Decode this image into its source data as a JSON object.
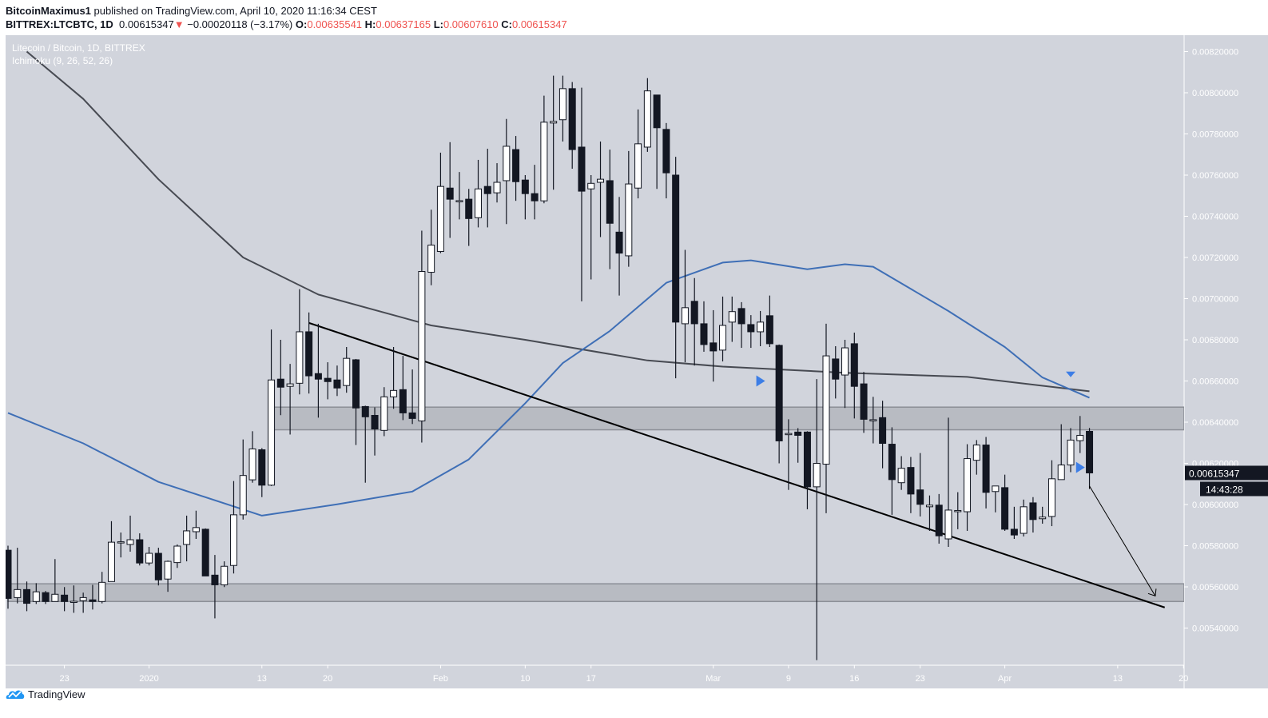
{
  "header": {
    "author": "BitcoinMaximus1",
    "published": "published on TradingView.com, April 10, 2020 11:16:34 CEST",
    "symbol": "BITTREX:LTCBTC, 1D",
    "last": "0.00615347",
    "change": "−0.00020118 (−3.17%)",
    "o_label": "O:",
    "o": "0.00635541",
    "h_label": "H:",
    "h": "0.00637165",
    "l_label": "L:",
    "l": "0.00607610",
    "c_label": "C:",
    "c": "0.00615347"
  },
  "legend": {
    "title": "Litecoin / Bitcoin, 1D, BITTREX",
    "indicator": "Ichimoku (9, 26, 52, 26)"
  },
  "footer": {
    "brand": "TradingView"
  },
  "colors": {
    "background": "#d1d4dc",
    "up": "#ffffff",
    "down": "#131722",
    "blue_line": "#3f6fb6",
    "gray_line": "#474a52",
    "marker": "#3d7ee6",
    "zone": "#b4b6bd",
    "down_arrow": "#ef5350"
  },
  "chart_data": {
    "type": "candlestick",
    "timeframe": "1D",
    "ylim": [
      0.0052,
      0.0083
    ],
    "y_ticks": [
      "0.00540000",
      "0.00560000",
      "0.00580000",
      "0.00600000",
      "0.00620000",
      "0.00640000",
      "0.00660000",
      "0.00680000",
      "0.00700000",
      "0.00720000",
      "0.00740000",
      "0.00760000",
      "0.00780000",
      "0.00800000",
      "0.00820000"
    ],
    "x_ticks": [
      {
        "date": "2019-12-23",
        "label": "23"
      },
      {
        "date": "2020-01-01",
        "label": "2020"
      },
      {
        "date": "2020-01-13",
        "label": "13"
      },
      {
        "date": "2020-01-20",
        "label": "20"
      },
      {
        "date": "2020-02-01",
        "label": "Feb"
      },
      {
        "date": "2020-02-10",
        "label": "10"
      },
      {
        "date": "2020-02-17",
        "label": "17"
      },
      {
        "date": "2020-03-01",
        "label": "Mar"
      },
      {
        "date": "2020-03-09",
        "label": "9"
      },
      {
        "date": "2020-03-16",
        "label": "16"
      },
      {
        "date": "2020-03-23",
        "label": "23"
      },
      {
        "date": "2020-04-01",
        "label": "Apr"
      },
      {
        "date": "2020-04-13",
        "label": "13"
      },
      {
        "date": "2020-04-20",
        "label": "20"
      }
    ],
    "last_price_label": "0.00615347",
    "countdown": "14:43:28",
    "candles_columns": [
      "date",
      "open",
      "high",
      "low",
      "close"
    ],
    "candles": [
      [
        "2019-12-17",
        0.005778,
        0.0058,
        0.005494,
        0.005544
      ],
      [
        "2019-12-18",
        0.005548,
        0.00579,
        0.00552,
        0.005587
      ],
      [
        "2019-12-19",
        0.005587,
        0.005626,
        0.005482,
        0.00552
      ],
      [
        "2019-12-20",
        0.005529,
        0.005618,
        0.005517,
        0.005576
      ],
      [
        "2019-12-21",
        0.005572,
        0.00558,
        0.005517,
        0.005529
      ],
      [
        "2019-12-22",
        0.005529,
        0.005735,
        0.005529,
        0.005564
      ],
      [
        "2019-12-23",
        0.00556,
        0.005599,
        0.005482,
        0.005529
      ],
      [
        "2019-12-24",
        0.005529,
        0.005607,
        0.005474,
        0.00553
      ],
      [
        "2019-12-25",
        0.005533,
        0.005572,
        0.005474,
        0.005548
      ],
      [
        "2019-12-26",
        0.005537,
        0.00561,
        0.00549,
        0.005529
      ],
      [
        "2019-12-27",
        0.005529,
        0.005673,
        0.00552,
        0.005622
      ],
      [
        "2019-12-28",
        0.005626,
        0.005919,
        0.005626,
        0.005817
      ],
      [
        "2019-12-29",
        0.005817,
        0.005864,
        0.005743,
        0.005819
      ],
      [
        "2019-12-30",
        0.005806,
        0.005946,
        0.005771,
        0.005829
      ],
      [
        "2019-12-31",
        0.005829,
        0.00586,
        0.005704,
        0.005716
      ],
      [
        "2020-01-01",
        0.005716,
        0.005794,
        0.005704,
        0.005763
      ],
      [
        "2020-01-02",
        0.005763,
        0.00579,
        0.005607,
        0.005634
      ],
      [
        "2020-01-03",
        0.005638,
        0.005728,
        0.005576,
        0.005724
      ],
      [
        "2020-01-04",
        0.005718,
        0.005806,
        0.005692,
        0.005798
      ],
      [
        "2020-01-05",
        0.005806,
        0.005946,
        0.005724,
        0.005872
      ],
      [
        "2020-01-06",
        0.005868,
        0.00597,
        0.005833,
        0.005888
      ],
      [
        "2020-01-07",
        0.00588,
        0.005884,
        0.005653,
        0.005653
      ],
      [
        "2020-01-08",
        0.005657,
        0.005755,
        0.005447,
        0.00561
      ],
      [
        "2020-01-09",
        0.00561,
        0.005724,
        0.005599,
        0.0057
      ],
      [
        "2020-01-10",
        0.005704,
        0.006114,
        0.005665,
        0.00595
      ],
      [
        "2020-01-11",
        0.00595,
        0.006316,
        0.005927,
        0.006141
      ],
      [
        "2020-01-12",
        0.00612,
        0.006356,
        0.006106,
        0.00627
      ],
      [
        "2020-01-13",
        0.006266,
        0.006274,
        0.006036,
        0.006094
      ],
      [
        "2020-01-14",
        0.006094,
        0.00685,
        0.00609,
        0.006605
      ],
      [
        "2020-01-15",
        0.006609,
        0.0068,
        0.006434,
        0.00657
      ],
      [
        "2020-01-16",
        0.006574,
        0.006683,
        0.00634,
        0.006586
      ],
      [
        "2020-01-17",
        0.006589,
        0.007046,
        0.006535,
        0.006839
      ],
      [
        "2020-01-18",
        0.006839,
        0.006933,
        0.006539,
        0.006625
      ],
      [
        "2020-01-19",
        0.006636,
        0.006878,
        0.006422,
        0.006609
      ],
      [
        "2020-01-20",
        0.006613,
        0.006691,
        0.006511,
        0.006597
      ],
      [
        "2020-01-21",
        0.006605,
        0.006675,
        0.006527,
        0.006566
      ],
      [
        "2020-01-22",
        0.006578,
        0.006765,
        0.006543,
        0.00671
      ],
      [
        "2020-01-23",
        0.006703,
        0.006707,
        0.006289,
        0.006469
      ],
      [
        "2020-01-24",
        0.006476,
        0.00648,
        0.006106,
        0.006426
      ],
      [
        "2020-01-25",
        0.006433,
        0.006472,
        0.006238,
        0.006367
      ],
      [
        "2020-01-26",
        0.00636,
        0.00657,
        0.006332,
        0.006523
      ],
      [
        "2020-01-27",
        0.006523,
        0.006765,
        0.006465,
        0.006554
      ],
      [
        "2020-01-28",
        0.006558,
        0.006722,
        0.00641,
        0.006445
      ],
      [
        "2020-01-29",
        0.006445,
        0.006656,
        0.006391,
        0.006418
      ],
      [
        "2020-01-30",
        0.006406,
        0.00733,
        0.006301,
        0.007132
      ],
      [
        "2020-01-31",
        0.007128,
        0.007432,
        0.007065,
        0.00726
      ],
      [
        "2020-02-01",
        0.007229,
        0.007709,
        0.007221,
        0.007545
      ],
      [
        "2020-02-02",
        0.007537,
        0.00776,
        0.007295,
        0.007483
      ],
      [
        "2020-02-03",
        0.007475,
        0.007615,
        0.007385,
        0.007476
      ],
      [
        "2020-02-04",
        0.007483,
        0.007533,
        0.007256,
        0.007389
      ],
      [
        "2020-02-05",
        0.007393,
        0.007674,
        0.007346,
        0.007533
      ],
      [
        "2020-02-06",
        0.007545,
        0.007728,
        0.007346,
        0.00751
      ],
      [
        "2020-02-07",
        0.007514,
        0.007658,
        0.007467,
        0.007565
      ],
      [
        "2020-02-08",
        0.007573,
        0.007873,
        0.007362,
        0.00774
      ],
      [
        "2020-02-09",
        0.007724,
        0.00779,
        0.007475,
        0.007568
      ],
      [
        "2020-02-10",
        0.007576,
        0.0076,
        0.007385,
        0.00751
      ],
      [
        "2020-02-11",
        0.00751,
        0.00765,
        0.007385,
        0.007475
      ],
      [
        "2020-02-12",
        0.007475,
        0.007986,
        0.007463,
        0.007857
      ],
      [
        "2020-02-13",
        0.007853,
        0.008083,
        0.007529,
        0.007861
      ],
      [
        "2020-02-14",
        0.007869,
        0.008083,
        0.007763,
        0.00802
      ],
      [
        "2020-02-15",
        0.00802,
        0.008052,
        0.007631,
        0.007724
      ],
      [
        "2020-02-16",
        0.007736,
        0.008025,
        0.006987,
        0.007522
      ],
      [
        "2020-02-17",
        0.007533,
        0.0076,
        0.007093,
        0.00756
      ],
      [
        "2020-02-18",
        0.007565,
        0.007763,
        0.007299,
        0.00758
      ],
      [
        "2020-02-19",
        0.007573,
        0.007724,
        0.007143,
        0.007366
      ],
      [
        "2020-02-20",
        0.007323,
        0.007494,
        0.007015,
        0.007221
      ],
      [
        "2020-02-21",
        0.007208,
        0.007717,
        0.007155,
        0.007557
      ],
      [
        "2020-02-22",
        0.007537,
        0.007919,
        0.007487,
        0.007752
      ],
      [
        "2020-02-23",
        0.007736,
        0.008071,
        0.007713,
        0.008009
      ],
      [
        "2020-02-24",
        0.007989,
        0.007989,
        0.007533,
        0.00783
      ],
      [
        "2020-02-25",
        0.007822,
        0.007853,
        0.007487,
        0.007611
      ],
      [
        "2020-02-26",
        0.0076,
        0.007689,
        0.006613,
        0.006886
      ],
      [
        "2020-02-27",
        0.006878,
        0.007237,
        0.006691,
        0.006956
      ],
      [
        "2020-02-28",
        0.006987,
        0.0071,
        0.006675,
        0.006878
      ],
      [
        "2020-02-29",
        0.006878,
        0.006987,
        0.006742,
        0.006777
      ],
      [
        "2020-03-01",
        0.006785,
        0.006944,
        0.006597,
        0.006746
      ],
      [
        "2020-03-02",
        0.00675,
        0.00701,
        0.006695,
        0.00687
      ],
      [
        "2020-03-03",
        0.006886,
        0.00701,
        0.00679,
        0.006937
      ],
      [
        "2020-03-04",
        0.006952,
        0.006983,
        0.006761,
        0.006878
      ],
      [
        "2020-03-05",
        0.006874,
        0.00692,
        0.006761,
        0.006839
      ],
      [
        "2020-03-06",
        0.006839,
        0.00694,
        0.006769,
        0.006886
      ],
      [
        "2020-03-07",
        0.006917,
        0.007015,
        0.006765,
        0.006781
      ],
      [
        "2020-03-08",
        0.006773,
        0.006777,
        0.0062,
        0.006309
      ],
      [
        "2020-03-09",
        0.006344,
        0.006414,
        0.006071,
        0.006345
      ],
      [
        "2020-03-10",
        0.006352,
        0.006371,
        0.006203,
        0.006336
      ],
      [
        "2020-03-11",
        0.006352,
        0.006356,
        0.005977,
        0.006086
      ],
      [
        "2020-03-12",
        0.006086,
        0.006609,
        0.005244,
        0.0062
      ],
      [
        "2020-03-13",
        0.006196,
        0.006878,
        0.005958,
        0.006722
      ],
      [
        "2020-03-14",
        0.006707,
        0.006769,
        0.006515,
        0.006609
      ],
      [
        "2020-03-15",
        0.006629,
        0.0068,
        0.006469,
        0.006761
      ],
      [
        "2020-03-16",
        0.006781,
        0.006835,
        0.006418,
        0.006574
      ],
      [
        "2020-03-17",
        0.006586,
        0.006644,
        0.006348,
        0.006414
      ],
      [
        "2020-03-18",
        0.00641,
        0.006523,
        0.006297,
        0.006412
      ],
      [
        "2020-03-19",
        0.006422,
        0.006504,
        0.006176,
        0.006297
      ],
      [
        "2020-03-20",
        0.006293,
        0.006375,
        0.00595,
        0.006121
      ],
      [
        "2020-03-21",
        0.006106,
        0.006235,
        0.006071,
        0.006176
      ],
      [
        "2020-03-22",
        0.00618,
        0.006231,
        0.005958,
        0.006051
      ],
      [
        "2020-03-23",
        0.006071,
        0.00625,
        0.005942,
        0.006001
      ],
      [
        "2020-03-24",
        0.005989,
        0.006044,
        0.005872,
        0.005997
      ],
      [
        "2020-03-25",
        0.005997,
        0.006051,
        0.00581,
        0.005848
      ],
      [
        "2020-03-26",
        0.005833,
        0.006422,
        0.005794,
        0.005973
      ],
      [
        "2020-03-27",
        0.005969,
        0.00606,
        0.00588,
        0.005971
      ],
      [
        "2020-03-28",
        0.005965,
        0.006293,
        0.005872,
        0.006223
      ],
      [
        "2020-03-29",
        0.006215,
        0.006313,
        0.006145,
        0.006289
      ],
      [
        "2020-03-30",
        0.006289,
        0.006328,
        0.005981,
        0.006059
      ],
      [
        "2020-03-31",
        0.006063,
        0.00609,
        0.005962,
        0.00609
      ],
      [
        "2020-04-01",
        0.006082,
        0.006145,
        0.005872,
        0.00588
      ],
      [
        "2020-04-02",
        0.00588,
        0.005989,
        0.005833,
        0.005852
      ],
      [
        "2020-04-03",
        0.00586,
        0.006024,
        0.005845,
        0.005989
      ],
      [
        "2020-04-04",
        0.006008,
        0.006036,
        0.005864,
        0.005927
      ],
      [
        "2020-04-05",
        0.005931,
        0.005989,
        0.005907,
        0.005939
      ],
      [
        "2020-04-06",
        0.005942,
        0.006215,
        0.005895,
        0.006125
      ],
      [
        "2020-04-07",
        0.006121,
        0.00639,
        0.006121,
        0.006192
      ],
      [
        "2020-04-08",
        0.006192,
        0.006371,
        0.006157,
        0.006313
      ],
      [
        "2020-04-09",
        0.00631,
        0.00643,
        0.00625,
        0.006336
      ],
      [
        "2020-04-10",
        0.00635541,
        0.00637165,
        0.0060761,
        0.00615347
      ]
    ],
    "lines": [
      {
        "color_key": "gray_line",
        "points": [
          [
            "2019-12-19",
            0.0082
          ],
          [
            "2019-12-25",
            0.00797
          ],
          [
            "2020-01-02",
            0.00758
          ],
          [
            "2020-01-11",
            0.0072
          ],
          [
            "2020-01-19",
            0.00702
          ],
          [
            "2020-01-31",
            0.00687
          ],
          [
            "2020-02-10",
            0.0068
          ],
          [
            "2020-02-23",
            0.0067
          ],
          [
            "2020-03-02",
            0.00667
          ],
          [
            "2020-03-15",
            0.00664
          ],
          [
            "2020-03-28",
            0.00662
          ],
          [
            "2020-04-10",
            0.00655
          ]
        ]
      },
      {
        "color_key": "blue_line",
        "points": [
          [
            "2019-12-17",
            0.006445
          ],
          [
            "2019-12-25",
            0.006297
          ],
          [
            "2020-01-02",
            0.00611
          ],
          [
            "2020-01-13",
            0.005946
          ],
          [
            "2020-01-21",
            0.006001
          ],
          [
            "2020-01-29",
            0.006063
          ],
          [
            "2020-02-04",
            0.006219
          ],
          [
            "2020-02-10",
            0.006492
          ],
          [
            "2020-02-14",
            0.006687
          ],
          [
            "2020-02-19",
            0.006843
          ],
          [
            "2020-02-25",
            0.007077
          ],
          [
            "2020-03-02",
            0.007175
          ],
          [
            "2020-03-05",
            0.007186
          ],
          [
            "2020-03-11",
            0.007143
          ],
          [
            "2020-03-15",
            0.007167
          ],
          [
            "2020-03-18",
            0.007155
          ],
          [
            "2020-03-26",
            0.00694
          ],
          [
            "2020-04-01",
            0.006765
          ],
          [
            "2020-04-05",
            0.006617
          ],
          [
            "2020-04-10",
            0.006519
          ]
        ]
      }
    ],
    "zones": [
      {
        "from": "2020-01-14",
        "low": 0.006363,
        "high": 0.006473
      },
      {
        "from": "2019-12-17",
        "low": 0.005529,
        "high": 0.005615
      }
    ],
    "trendline": [
      [
        "2020-01-18",
        0.006882
      ],
      [
        "2020-04-18",
        0.0055
      ]
    ],
    "projection_arrow": [
      [
        "2020-04-10",
        0.00609
      ],
      [
        "2020-04-17",
        0.005556
      ]
    ],
    "markers": [
      {
        "date": "2020-03-06",
        "price": 0.0066,
        "shape": "triangle-right"
      },
      {
        "date": "2020-04-08",
        "price": 0.00663,
        "shape": "triangle-down"
      },
      {
        "date": "2020-04-09",
        "price": 0.00618,
        "shape": "triangle-right"
      }
    ]
  }
}
